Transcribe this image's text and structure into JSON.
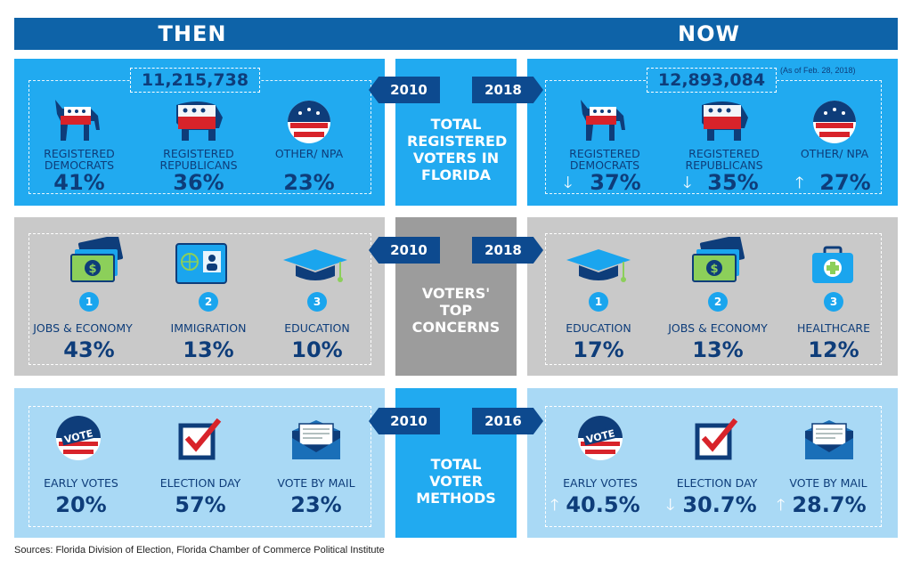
{
  "header": {
    "then": "THEN",
    "now": "NOW"
  },
  "colors": {
    "navy": "#0e63a8",
    "sky": "#21aaf0",
    "grey": "#c9c9c9",
    "pale": "#a9d9f5",
    "text": "#0e3d7a"
  },
  "voters": {
    "title": "TOTAL REGISTERED VOTERS IN FLORIDA",
    "year_then": "2010",
    "year_now": "2018",
    "total_then": "11,215,738",
    "total_now": "12,893,084",
    "as_of": "(As of Feb. 28, 2018)",
    "then_items": [
      {
        "icon": "democrat-donkey-icon",
        "label": "REGISTERED DEMOCRATS",
        "value": "41%"
      },
      {
        "icon": "republican-elephant-icon",
        "label": "REGISTERED REPUBLICANS",
        "value": "36%"
      },
      {
        "icon": "vote-badge-icon",
        "label": "OTHER/ NPA",
        "value": "23%"
      }
    ],
    "now_items": [
      {
        "icon": "democrat-donkey-icon",
        "label": "REGISTERED DEMOCRATS",
        "value": "37%",
        "trend": "down"
      },
      {
        "icon": "republican-elephant-icon",
        "label": "REGISTERED REPUBLICANS",
        "value": "35%",
        "trend": "down"
      },
      {
        "icon": "vote-badge-icon",
        "label": "OTHER/ NPA",
        "value": "27%",
        "trend": "up"
      }
    ]
  },
  "concerns": {
    "title": "VOTERS' TOP CONCERNS",
    "year_then": "2010",
    "year_now": "2018",
    "then_items": [
      {
        "rank": "1",
        "icon": "money-icon",
        "label": "JOBS & ECONOMY",
        "value": "43%"
      },
      {
        "rank": "2",
        "icon": "passport-icon",
        "label": "IMMIGRATION",
        "value": "13%"
      },
      {
        "rank": "3",
        "icon": "graduation-cap-icon",
        "label": "EDUCATION",
        "value": "10%"
      }
    ],
    "now_items": [
      {
        "rank": "1",
        "icon": "graduation-cap-icon",
        "label": "EDUCATION",
        "value": "17%"
      },
      {
        "rank": "2",
        "icon": "money-icon",
        "label": "JOBS & ECONOMY",
        "value": "13%"
      },
      {
        "rank": "3",
        "icon": "first-aid-kit-icon",
        "label": "HEALTHCARE",
        "value": "12%"
      }
    ]
  },
  "methods": {
    "title": "TOTAL VOTER METHODS",
    "year_then": "2010",
    "year_now": "2016",
    "then_items": [
      {
        "icon": "vote-badge-icon",
        "badge_text": "VOTE",
        "label": "EARLY VOTES",
        "value": "20%"
      },
      {
        "icon": "checkbox-icon",
        "label": "ELECTION DAY",
        "value": "57%"
      },
      {
        "icon": "envelope-icon",
        "label": "VOTE BY MAIL",
        "value": "23%"
      }
    ],
    "now_items": [
      {
        "icon": "vote-badge-icon",
        "badge_text": "VOTE",
        "label": "EARLY VOTES",
        "value": "40.5%",
        "trend": "up"
      },
      {
        "icon": "checkbox-icon",
        "label": "ELECTION DAY",
        "value": "30.7%",
        "trend": "down"
      },
      {
        "icon": "envelope-icon",
        "label": "VOTE BY MAIL",
        "value": "28.7%",
        "trend": "up"
      }
    ]
  },
  "source": "Sources: Florida Division of Election, Florida Chamber of Commerce Political Institute",
  "trend_glyphs": {
    "up": "🡑",
    "down": "🡓"
  }
}
